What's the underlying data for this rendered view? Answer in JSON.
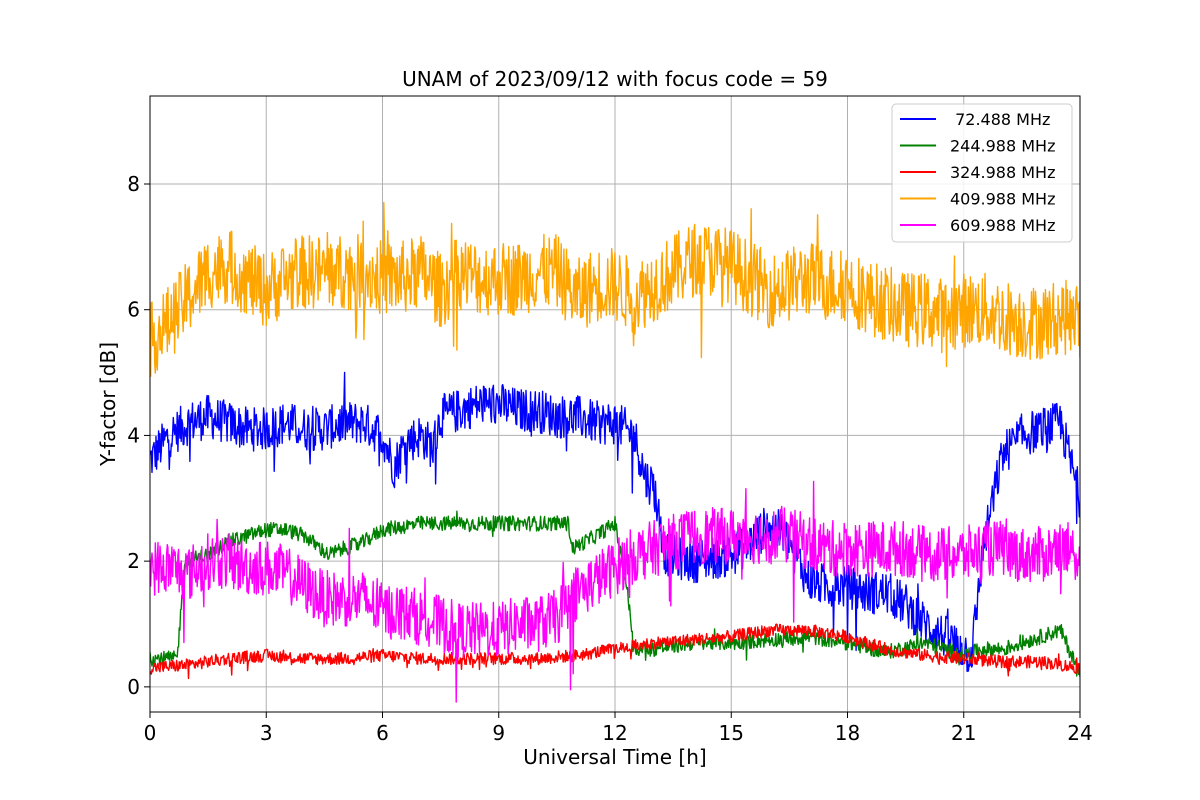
{
  "chart_data": {
    "type": "line",
    "title": "UNAM of 2023/09/12 with focus code = 59",
    "xlabel": "Universal Time [h]",
    "ylabel": "Y-factor [dB]",
    "xlim": [
      0,
      24
    ],
    "ylim": [
      -0.4,
      9.4
    ],
    "xticks": [
      0,
      3,
      6,
      9,
      12,
      15,
      18,
      21,
      24
    ],
    "yticks": [
      0,
      2,
      4,
      6,
      8
    ],
    "grid": true,
    "legend_position": "top-right",
    "series": [
      {
        "name": " 72.488 MHz",
        "color": "#0000ff",
        "noise": 0.35,
        "points": [
          [
            0,
            3.6
          ],
          [
            0.5,
            4.0
          ],
          [
            1,
            4.2
          ],
          [
            1.5,
            4.3
          ],
          [
            2,
            4.2
          ],
          [
            2.5,
            4.1
          ],
          [
            3,
            4.1
          ],
          [
            3.5,
            4.2
          ],
          [
            4,
            4.1
          ],
          [
            4.5,
            4.1
          ],
          [
            5,
            4.2
          ],
          [
            5.5,
            4.2
          ],
          [
            6,
            4.0
          ],
          [
            6.3,
            3.5
          ],
          [
            6.6,
            3.9
          ],
          [
            7,
            4.0
          ],
          [
            7.3,
            3.8
          ],
          [
            7.5,
            4.3
          ],
          [
            8,
            4.4
          ],
          [
            8.5,
            4.5
          ],
          [
            9,
            4.5
          ],
          [
            9.5,
            4.4
          ],
          [
            10,
            4.4
          ],
          [
            10.5,
            4.3
          ],
          [
            11,
            4.3
          ],
          [
            11.5,
            4.2
          ],
          [
            12,
            4.2
          ],
          [
            12.5,
            4.0
          ],
          [
            12.8,
            3.3
          ],
          [
            13,
            3.2
          ],
          [
            13.3,
            2.1
          ],
          [
            14,
            2.0
          ],
          [
            15,
            2.1
          ],
          [
            15.5,
            2.3
          ],
          [
            16,
            2.6
          ],
          [
            16.5,
            2.3
          ],
          [
            17,
            1.7
          ],
          [
            17.5,
            1.6
          ],
          [
            18,
            1.6
          ],
          [
            18.5,
            1.5
          ],
          [
            19,
            1.5
          ],
          [
            19.5,
            1.3
          ],
          [
            20,
            1.0
          ],
          [
            20.5,
            0.8
          ],
          [
            21,
            0.6
          ],
          [
            21.2,
            0.5
          ],
          [
            21.5,
            2.2
          ],
          [
            22,
            3.7
          ],
          [
            22.5,
            4.0
          ],
          [
            23,
            4.1
          ],
          [
            23.5,
            4.2
          ],
          [
            24,
            3.0
          ]
        ]
      },
      {
        "name": "244.988 MHz",
        "color": "#008000",
        "noise": 0.12,
        "points": [
          [
            0,
            0.45
          ],
          [
            0.7,
            0.45
          ],
          [
            0.9,
            2.0
          ],
          [
            1.5,
            2.1
          ],
          [
            2,
            2.3
          ],
          [
            2.5,
            2.4
          ],
          [
            3,
            2.5
          ],
          [
            3.5,
            2.5
          ],
          [
            4,
            2.4
          ],
          [
            4.4,
            2.2
          ],
          [
            4.6,
            2.1
          ],
          [
            5,
            2.2
          ],
          [
            5.5,
            2.3
          ],
          [
            6,
            2.5
          ],
          [
            6.5,
            2.55
          ],
          [
            7,
            2.6
          ],
          [
            8,
            2.6
          ],
          [
            9,
            2.6
          ],
          [
            10,
            2.6
          ],
          [
            10.8,
            2.6
          ],
          [
            10.9,
            2.2
          ],
          [
            11.5,
            2.4
          ],
          [
            12,
            2.6
          ],
          [
            12.3,
            1.6
          ],
          [
            12.5,
            0.6
          ],
          [
            13,
            0.6
          ],
          [
            14,
            0.7
          ],
          [
            15,
            0.7
          ],
          [
            16,
            0.75
          ],
          [
            17,
            0.8
          ],
          [
            18,
            0.7
          ],
          [
            19,
            0.55
          ],
          [
            20,
            0.7
          ],
          [
            20.5,
            0.6
          ],
          [
            21,
            0.5
          ],
          [
            21.5,
            0.6
          ],
          [
            22,
            0.6
          ],
          [
            23,
            0.8
          ],
          [
            23.5,
            0.9
          ],
          [
            24,
            0.2
          ]
        ]
      },
      {
        "name": "324.988 MHz",
        "color": "#ff0000",
        "noise": 0.1,
        "points": [
          [
            0,
            0.3
          ],
          [
            1,
            0.35
          ],
          [
            2,
            0.45
          ],
          [
            3,
            0.5
          ],
          [
            4,
            0.45
          ],
          [
            5,
            0.45
          ],
          [
            6,
            0.5
          ],
          [
            7,
            0.45
          ],
          [
            8,
            0.45
          ],
          [
            9,
            0.45
          ],
          [
            10,
            0.45
          ],
          [
            11,
            0.5
          ],
          [
            12,
            0.6
          ],
          [
            13,
            0.7
          ],
          [
            14,
            0.75
          ],
          [
            15,
            0.8
          ],
          [
            16,
            0.9
          ],
          [
            17,
            0.9
          ],
          [
            18,
            0.8
          ],
          [
            19,
            0.6
          ],
          [
            20,
            0.5
          ],
          [
            21,
            0.45
          ],
          [
            22,
            0.4
          ],
          [
            23,
            0.4
          ],
          [
            24,
            0.3
          ]
        ]
      },
      {
        "name": "409.988 MHz",
        "color": "#ffa500",
        "noise": 0.6,
        "points": [
          [
            0,
            5.5
          ],
          [
            0.5,
            5.8
          ],
          [
            1,
            6.2
          ],
          [
            1.5,
            6.6
          ],
          [
            2,
            6.7
          ],
          [
            2.5,
            6.5
          ],
          [
            3,
            6.3
          ],
          [
            3.5,
            6.5
          ],
          [
            4,
            6.6
          ],
          [
            4.5,
            6.6
          ],
          [
            5,
            6.6
          ],
          [
            5.5,
            6.6
          ],
          [
            6,
            6.5
          ],
          [
            6.5,
            6.5
          ],
          [
            7,
            6.6
          ],
          [
            7.5,
            6.3
          ],
          [
            8,
            6.6
          ],
          [
            8.5,
            6.5
          ],
          [
            9,
            6.5
          ],
          [
            9.5,
            6.5
          ],
          [
            10,
            6.6
          ],
          [
            10.5,
            6.6
          ],
          [
            11,
            6.2
          ],
          [
            11.5,
            6.4
          ],
          [
            12,
            6.4
          ],
          [
            12.5,
            6.2
          ],
          [
            13,
            6.4
          ],
          [
            13.5,
            6.6
          ],
          [
            14,
            6.8
          ],
          [
            14.5,
            6.8
          ],
          [
            15,
            6.7
          ],
          [
            15.5,
            6.5
          ],
          [
            16,
            6.3
          ],
          [
            16.5,
            6.4
          ],
          [
            17,
            6.5
          ],
          [
            17.5,
            6.4
          ],
          [
            18,
            6.4
          ],
          [
            18.5,
            6.2
          ],
          [
            19,
            6.1
          ],
          [
            19.5,
            6.0
          ],
          [
            20,
            6.0
          ],
          [
            20.5,
            5.9
          ],
          [
            21,
            6.0
          ],
          [
            21.5,
            6.0
          ],
          [
            22,
            5.9
          ],
          [
            22.5,
            5.8
          ],
          [
            23,
            5.8
          ],
          [
            23.5,
            5.9
          ],
          [
            24,
            5.8
          ]
        ]
      },
      {
        "name": "609.988 MHz",
        "color": "#ff00ff",
        "noise": 0.45,
        "points": [
          [
            0,
            1.9
          ],
          [
            0.5,
            1.9
          ],
          [
            1,
            1.8
          ],
          [
            1.5,
            2.0
          ],
          [
            2,
            2.0
          ],
          [
            2.5,
            1.9
          ],
          [
            3,
            1.9
          ],
          [
            3.5,
            1.8
          ],
          [
            4,
            1.6
          ],
          [
            4.5,
            1.4
          ],
          [
            5,
            1.4
          ],
          [
            5.5,
            1.4
          ],
          [
            6,
            1.2
          ],
          [
            6.5,
            1.2
          ],
          [
            7,
            1.1
          ],
          [
            7.5,
            1.0
          ],
          [
            8,
            0.9
          ],
          [
            8.5,
            0.9
          ],
          [
            9,
            0.9
          ],
          [
            9.5,
            1.0
          ],
          [
            10,
            1.0
          ],
          [
            10.5,
            1.1
          ],
          [
            11,
            1.5
          ],
          [
            11.5,
            1.7
          ],
          [
            12,
            1.9
          ],
          [
            12.5,
            2.1
          ],
          [
            13,
            2.2
          ],
          [
            13.5,
            2.3
          ],
          [
            14,
            2.4
          ],
          [
            14.5,
            2.4
          ],
          [
            15,
            2.4
          ],
          [
            15.5,
            2.4
          ],
          [
            16,
            2.4
          ],
          [
            16.5,
            2.4
          ],
          [
            17,
            2.3
          ],
          [
            17.5,
            2.2
          ],
          [
            18,
            2.2
          ],
          [
            18.5,
            2.2
          ],
          [
            19,
            2.2
          ],
          [
            19.5,
            2.2
          ],
          [
            20,
            2.1
          ],
          [
            20.5,
            2.1
          ],
          [
            21,
            2.1
          ],
          [
            21.5,
            2.2
          ],
          [
            22,
            2.2
          ],
          [
            22.5,
            2.1
          ],
          [
            23,
            2.1
          ],
          [
            23.5,
            2.2
          ],
          [
            24,
            2.1
          ]
        ]
      }
    ]
  }
}
